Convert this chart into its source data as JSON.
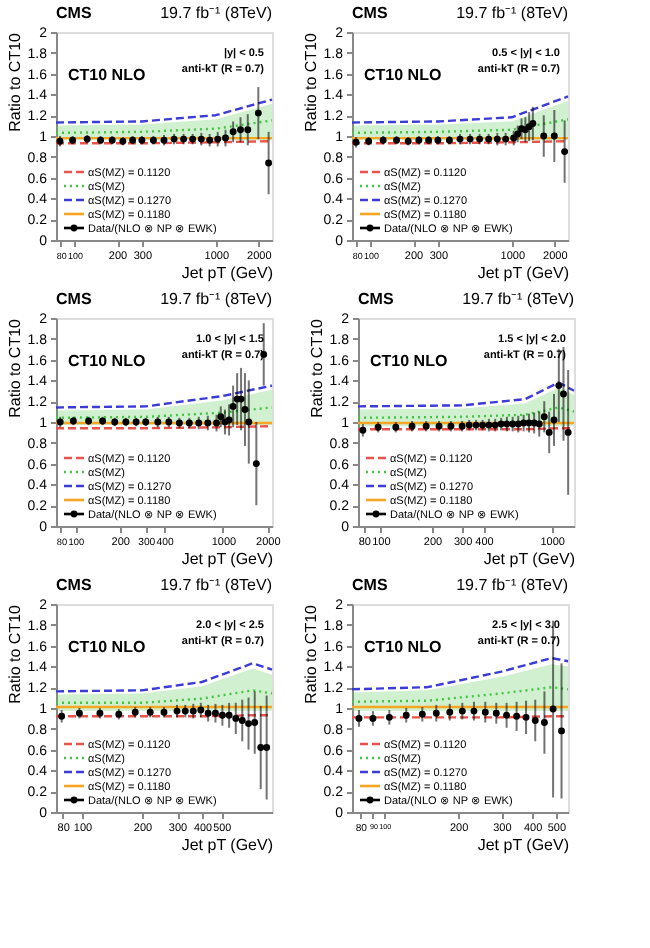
{
  "chart_data": [
    {
      "type": "line",
      "title": "CMS",
      "subtitle": "19.7 fb⁻¹ (8TeV)",
      "xlabel": "Jet pT (GeV)",
      "ylabel": "Ratio to CT10",
      "annotations": [
        "CT10 NLO",
        "|y| < 0.5",
        "anti-kT (R = 0.7)"
      ],
      "log": "x",
      "legend": "bottom left",
      "xlim": [
        74,
        2500
      ],
      "xticks": [
        80,
        100,
        200,
        300,
        1000,
        2000
      ],
      "ylim": [
        0,
        2
      ],
      "yticks": [
        0,
        0.2,
        0.4,
        0.6,
        0.8,
        1,
        1.2,
        1.4,
        1.6,
        1.8,
        2
      ],
      "series": [
        {
          "name": "αS(MZ) = 0.1120",
          "line_style": "dashed",
          "color": "#e8534b",
          "x": [
            74,
            300,
            1000,
            2500
          ],
          "values": [
            0.93,
            0.93,
            0.94,
            0.95
          ]
        },
        {
          "name": "αS(MZ)",
          "line_style": "dotted",
          "color": "#44c444",
          "x": [
            74,
            300,
            1000,
            2500
          ],
          "values": [
            1.03,
            1.04,
            1.07,
            1.15
          ],
          "lower": [
            0.96,
            0.96,
            0.96,
            0.96
          ],
          "upper": [
            1.1,
            1.11,
            1.16,
            1.31
          ]
        },
        {
          "name": "αS(MZ) = 0.1270",
          "line_style": "dashed",
          "color": "#3b3bd6",
          "x": [
            74,
            300,
            1000,
            2500
          ],
          "values": [
            1.13,
            1.14,
            1.2,
            1.35
          ]
        },
        {
          "name": "αS(MZ) = 0.1180",
          "line_style": "solid",
          "color": "#f5a623",
          "x": [
            74,
            300,
            1000,
            2500
          ],
          "values": [
            0.98,
            0.98,
            0.98,
            0.98
          ]
        },
        {
          "name": "Data/(NLO ⊗ NP ⊗ EWK)",
          "type": "scatter",
          "marker": "circle",
          "color": "#000000",
          "x": [
            79,
            97,
            123,
            153,
            185,
            220,
            258,
            300,
            362,
            430,
            507,
            592,
            686,
            790,
            905,
            1032,
            1172,
            1327,
            1497,
            1684,
            2000,
            2366
          ],
          "values": [
            0.95,
            0.96,
            0.97,
            0.96,
            0.96,
            0.95,
            0.96,
            0.96,
            0.96,
            0.96,
            0.97,
            0.97,
            0.97,
            0.97,
            0.96,
            0.97,
            0.98,
            1.04,
            1.06,
            1.06,
            1.22,
            0.74
          ],
          "errors": [
            0.05,
            0.04,
            0.04,
            0.04,
            0.04,
            0.04,
            0.04,
            0.04,
            0.04,
            0.05,
            0.05,
            0.05,
            0.05,
            0.06,
            0.06,
            0.07,
            0.08,
            0.1,
            0.12,
            0.15,
            0.25,
            0.3
          ]
        }
      ]
    },
    {
      "type": "line",
      "title": "CMS",
      "subtitle": "19.7 fb⁻¹ (8TeV)",
      "xlabel": "Jet pT (GeV)",
      "ylabel": "Ratio to CT10",
      "annotations": [
        "CT10 NLO",
        "0.5 < |y| < 1.0",
        "anti-kT (R = 0.7)"
      ],
      "log": "x",
      "legend": "bottom left",
      "xlim": [
        74,
        2500
      ],
      "xticks": [
        80,
        100,
        200,
        300,
        1000,
        2000
      ],
      "ylim": [
        0,
        2
      ],
      "yticks": [
        0,
        0.2,
        0.4,
        0.6,
        0.8,
        1,
        1.2,
        1.4,
        1.6,
        1.8,
        2
      ],
      "series": [
        {
          "name": "αS(MZ) = 0.1120",
          "type": "line",
          "line_style": "dashed",
          "color": "#e8534b",
          "x": [
            74,
            300,
            1000,
            2500
          ],
          "values": [
            0.93,
            0.93,
            0.94,
            0.95
          ]
        },
        {
          "name": "αS(MZ)",
          "type": "line",
          "line_style": "dotted",
          "color": "#44c444",
          "x": [
            74,
            300,
            1000,
            2500
          ],
          "values": [
            1.03,
            1.04,
            1.06,
            1.16
          ],
          "lower": [
            0.96,
            0.96,
            0.96,
            0.96
          ],
          "upper": [
            1.1,
            1.11,
            1.14,
            1.34
          ]
        },
        {
          "name": "αS(MZ) = 0.1270",
          "type": "line",
          "line_style": "dashed",
          "color": "#3b3bd6",
          "x": [
            74,
            300,
            1000,
            2500
          ],
          "values": [
            1.13,
            1.14,
            1.18,
            1.38
          ]
        },
        {
          "name": "αS(MZ) = 0.1180",
          "type": "line",
          "line_style": "solid",
          "color": "#f5a623",
          "x": [
            74,
            300,
            1000,
            2500
          ],
          "values": [
            0.98,
            0.98,
            0.98,
            0.98
          ]
        },
        {
          "name": "Data/(NLO ⊗ NP ⊗ EWK)",
          "type": "scatter",
          "marker": "circle",
          "color": "#000000",
          "x": [
            79,
            97,
            123,
            153,
            185,
            220,
            258,
            300,
            362,
            430,
            507,
            592,
            686,
            790,
            905,
            1032,
            1101,
            1172,
            1248,
            1327,
            1410,
            1684,
            2000,
            2366
          ],
          "values": [
            0.94,
            0.95,
            0.96,
            0.96,
            0.95,
            0.96,
            0.96,
            0.96,
            0.96,
            0.97,
            0.97,
            0.97,
            0.97,
            0.97,
            0.97,
            0.98,
            1.02,
            1.07,
            1.06,
            1.09,
            1.12,
            1.0,
            1.0,
            0.85
          ],
          "errors": [
            0.05,
            0.04,
            0.04,
            0.04,
            0.04,
            0.04,
            0.04,
            0.04,
            0.04,
            0.05,
            0.05,
            0.05,
            0.05,
            0.06,
            0.06,
            0.07,
            0.08,
            0.1,
            0.12,
            0.14,
            0.16,
            0.2,
            0.25,
            0.3
          ]
        }
      ]
    },
    {
      "type": "line",
      "title": "CMS",
      "subtitle": "19.7 fb⁻¹ (8TeV)",
      "xlabel": "Jet pT (GeV)",
      "ylabel": "Ratio to CT10",
      "annotations": [
        "CT10 NLO",
        "1.0 < |y| < 1.5",
        "anti-kT (R = 0.7)"
      ],
      "log": "x",
      "legend": "bottom left",
      "xlim": [
        74,
        2150
      ],
      "xticks": [
        80,
        100,
        200,
        300,
        400,
        1000,
        2000
      ],
      "ylim": [
        0,
        2
      ],
      "yticks": [
        0,
        0.2,
        0.4,
        0.6,
        0.8,
        1,
        1.2,
        1.4,
        1.6,
        1.8,
        2
      ],
      "series": [
        {
          "name": "αS(MZ) = 0.1120",
          "type": "line",
          "line_style": "dashed",
          "color": "#e8534b",
          "x": [
            74,
            300,
            1000,
            2150
          ],
          "values": [
            0.94,
            0.94,
            0.95,
            0.96
          ]
        },
        {
          "name": "αS(MZ)",
          "type": "line",
          "line_style": "dotted",
          "color": "#44c444",
          "x": [
            74,
            300,
            1000,
            2150
          ],
          "values": [
            1.04,
            1.05,
            1.09,
            1.14
          ],
          "lower": [
            0.97,
            0.97,
            0.97,
            0.97
          ],
          "upper": [
            1.11,
            1.12,
            1.21,
            1.31
          ]
        },
        {
          "name": "αS(MZ) = 0.1270",
          "type": "line",
          "line_style": "dashed",
          "color": "#3b3bd6",
          "x": [
            74,
            300,
            1000,
            2150
          ],
          "values": [
            1.14,
            1.15,
            1.25,
            1.35
          ]
        },
        {
          "name": "αS(MZ) = 0.1180",
          "type": "line",
          "line_style": "solid",
          "color": "#f5a623",
          "x": [
            74,
            300,
            1000,
            2150
          ],
          "values": [
            0.99,
            0.99,
            0.99,
            0.99
          ]
        },
        {
          "name": "Data/(NLO ⊗ NP ⊗ EWK)",
          "type": "scatter",
          "marker": "circle",
          "color": "#000000",
          "x": [
            79,
            97,
            123,
            153,
            185,
            220,
            258,
            300,
            362,
            430,
            507,
            592,
            686,
            790,
            905,
            967,
            1032,
            1101,
            1172,
            1248,
            1327,
            1410,
            1497,
            1684,
            1890
          ],
          "values": [
            1.0,
            1.01,
            1.01,
            1.01,
            1.0,
            1.0,
            1.0,
            1.0,
            1.0,
            1.0,
            0.99,
            0.99,
            0.99,
            0.99,
            0.99,
            1.05,
            1.0,
            1.02,
            1.15,
            1.22,
            1.22,
            1.12,
            1.0,
            0.6,
            1.65
          ],
          "errors": [
            0.05,
            0.04,
            0.04,
            0.04,
            0.04,
            0.04,
            0.04,
            0.04,
            0.05,
            0.05,
            0.05,
            0.05,
            0.06,
            0.07,
            0.08,
            0.1,
            0.12,
            0.15,
            0.2,
            0.25,
            0.3,
            0.35,
            0.4,
            0.4,
            0.3
          ]
        }
      ]
    },
    {
      "type": "line",
      "title": "CMS",
      "subtitle": "19.7 fb⁻¹ (8TeV)",
      "xlabel": "Jet pT (GeV)",
      "ylabel": "Ratio to CT10",
      "annotations": [
        "CT10 NLO",
        "1.5 < |y| < 2.0",
        "anti-kT (R = 0.7)"
      ],
      "log": "x",
      "legend": "bottom left",
      "xlim": [
        74,
        1350
      ],
      "xticks": [
        80,
        100,
        200,
        300,
        400,
        1000
      ],
      "ylim": [
        0,
        2
      ],
      "yticks": [
        0,
        0.2,
        0.4,
        0.6,
        0.8,
        1,
        1.2,
        1.4,
        1.6,
        1.8,
        2
      ],
      "series": [
        {
          "name": "αS(MZ) = 0.1120",
          "type": "line",
          "line_style": "dashed",
          "color": "#e8534b",
          "x": [
            74,
            300,
            700,
            1100,
            1350
          ],
          "values": [
            0.93,
            0.93,
            0.93,
            0.94,
            0.94
          ]
        },
        {
          "name": "αS(MZ)",
          "type": "line",
          "line_style": "dotted",
          "color": "#44c444",
          "x": [
            74,
            300,
            700,
            1100,
            1350
          ],
          "values": [
            1.04,
            1.05,
            1.07,
            1.14,
            1.1
          ],
          "lower": [
            0.96,
            0.96,
            0.96,
            0.96,
            0.96
          ],
          "upper": [
            1.12,
            1.13,
            1.18,
            1.33,
            1.26
          ]
        },
        {
          "name": "αS(MZ) = 0.1270",
          "type": "line",
          "line_style": "dashed",
          "color": "#3b3bd6",
          "x": [
            74,
            300,
            700,
            1100,
            1350
          ],
          "values": [
            1.15,
            1.16,
            1.22,
            1.38,
            1.3
          ]
        },
        {
          "name": "αS(MZ) = 0.1180",
          "type": "line",
          "line_style": "solid",
          "color": "#f5a623",
          "x": [
            74,
            300,
            700,
            1100,
            1350
          ],
          "values": [
            0.99,
            0.99,
            0.99,
            0.99,
            0.99
          ]
        },
        {
          "name": "Data/(NLO ⊗ NP ⊗ EWK)",
          "type": "scatter",
          "marker": "circle",
          "color": "#000000",
          "x": [
            79,
            97,
            123,
            153,
            185,
            220,
            258,
            300,
            330,
            362,
            395,
            430,
            468,
            507,
            548,
            592,
            638,
            686,
            737,
            790,
            846,
            905,
            967,
            1032,
            1101,
            1172,
            1248
          ],
          "values": [
            0.92,
            0.95,
            0.95,
            0.96,
            0.96,
            0.96,
            0.96,
            0.96,
            0.97,
            0.97,
            0.97,
            0.97,
            0.97,
            0.98,
            0.98,
            0.98,
            0.98,
            0.99,
            0.99,
            0.99,
            0.98,
            1.05,
            0.9,
            1.02,
            1.35,
            1.27,
            0.9
          ],
          "errors": [
            0.06,
            0.05,
            0.05,
            0.05,
            0.05,
            0.05,
            0.05,
            0.05,
            0.05,
            0.05,
            0.05,
            0.06,
            0.06,
            0.06,
            0.07,
            0.07,
            0.08,
            0.08,
            0.09,
            0.1,
            0.12,
            0.15,
            0.2,
            0.25,
            0.35,
            0.45,
            0.6
          ]
        }
      ]
    },
    {
      "type": "line",
      "title": "CMS",
      "subtitle": "19.7 fb⁻¹ (8TeV)",
      "xlabel": "Jet pT (GeV)",
      "ylabel": "Ratio to CT10",
      "annotations": [
        "CT10 NLO",
        "2.0 < |y| < 2.5",
        "anti-kT (R = 0.7)"
      ],
      "log": "x",
      "legend": "bottom left",
      "xlim": [
        74,
        900
      ],
      "xticks": [
        80,
        100,
        200,
        300,
        400,
        500
      ],
      "ylim": [
        0,
        2
      ],
      "yticks": [
        0,
        0.2,
        0.4,
        0.6,
        0.8,
        1,
        1.2,
        1.4,
        1.6,
        1.8,
        2
      ],
      "series": [
        {
          "name": "αS(MZ) = 0.1120",
          "type": "line",
          "line_style": "dashed",
          "color": "#e8534b",
          "x": [
            74,
            200,
            400,
            720,
            900
          ],
          "values": [
            0.92,
            0.92,
            0.92,
            0.93,
            0.93
          ]
        },
        {
          "name": "αS(MZ)",
          "type": "line",
          "line_style": "dotted",
          "color": "#44c444",
          "x": [
            74,
            200,
            400,
            720,
            900
          ],
          "values": [
            1.05,
            1.05,
            1.09,
            1.17,
            1.14
          ],
          "lower": [
            0.97,
            0.97,
            0.97,
            0.97,
            0.97
          ],
          "upper": [
            1.13,
            1.14,
            1.21,
            1.38,
            1.32
          ]
        },
        {
          "name": "αS(MZ) = 0.1270",
          "type": "line",
          "line_style": "dashed",
          "color": "#3b3bd6",
          "x": [
            74,
            200,
            400,
            720,
            900
          ],
          "values": [
            1.16,
            1.17,
            1.25,
            1.43,
            1.37
          ]
        },
        {
          "name": "αS(MZ) = 0.1180",
          "type": "line",
          "line_style": "solid",
          "color": "#f5a623",
          "x": [
            74,
            200,
            400,
            720,
            900
          ],
          "values": [
            1.01,
            1.01,
            1.01,
            1.01,
            1.01
          ]
        },
        {
          "name": "Data/(NLO ⊗ NP ⊗ EWK)",
          "type": "scatter",
          "marker": "circle",
          "color": "#000000",
          "x": [
            79,
            97,
            123,
            153,
            185,
            220,
            258,
            300,
            330,
            362,
            395,
            430,
            468,
            507,
            548,
            592,
            638,
            686,
            737,
            790,
            846
          ],
          "values": [
            0.92,
            0.95,
            0.95,
            0.94,
            0.96,
            0.96,
            0.96,
            0.97,
            0.97,
            0.97,
            0.98,
            0.95,
            0.95,
            0.93,
            0.93,
            0.9,
            0.88,
            0.85,
            0.86,
            0.62,
            0.62
          ],
          "errors": [
            0.06,
            0.05,
            0.05,
            0.05,
            0.05,
            0.05,
            0.05,
            0.06,
            0.06,
            0.07,
            0.07,
            0.08,
            0.09,
            0.1,
            0.12,
            0.15,
            0.2,
            0.25,
            0.3,
            0.4,
            0.5
          ]
        }
      ]
    },
    {
      "type": "line",
      "title": "CMS",
      "subtitle": "19.7 fb⁻¹ (8TeV)",
      "xlabel": "Jet pT (GeV)",
      "ylabel": "Ratio to CT10",
      "annotations": [
        "CT10 NLO",
        "2.5 < |y| < 3.0",
        "anti-kT (R = 0.7)"
      ],
      "log": "x",
      "legend": "bottom left",
      "xlim": [
        74,
        560
      ],
      "xticks": [
        80,
        90,
        100,
        200,
        300,
        400,
        500
      ],
      "ylim": [
        0,
        2
      ],
      "yticks": [
        0,
        0.2,
        0.4,
        0.6,
        0.8,
        1,
        1.2,
        1.4,
        1.6,
        1.8,
        2
      ],
      "series": [
        {
          "name": "αS(MZ) = 0.1120",
          "type": "line",
          "line_style": "dashed",
          "color": "#e8534b",
          "x": [
            74,
            150,
            300,
            480,
            560
          ],
          "values": [
            0.91,
            0.91,
            0.91,
            0.92,
            0.92
          ]
        },
        {
          "name": "αS(MZ)",
          "type": "line",
          "line_style": "dotted",
          "color": "#44c444",
          "x": [
            74,
            150,
            300,
            480,
            560
          ],
          "values": [
            1.06,
            1.07,
            1.14,
            1.2,
            1.18
          ],
          "lower": [
            0.97,
            0.97,
            0.97,
            0.97,
            0.97
          ],
          "upper": [
            1.15,
            1.17,
            1.3,
            1.42,
            1.4
          ]
        },
        {
          "name": "αS(MZ) = 0.1270",
          "type": "line",
          "line_style": "dashed",
          "color": "#3b3bd6",
          "x": [
            74,
            150,
            300,
            480,
            560
          ],
          "values": [
            1.18,
            1.2,
            1.35,
            1.48,
            1.45
          ]
        },
        {
          "name": "αS(MZ) = 0.1180",
          "type": "line",
          "line_style": "solid",
          "color": "#f5a623",
          "x": [
            74,
            150,
            300,
            480,
            560
          ],
          "values": [
            1.01,
            1.01,
            1.01,
            1.01,
            1.01
          ]
        },
        {
          "name": "Data/(NLO ⊗ NP ⊗ EWK)",
          "type": "scatter",
          "marker": "circle",
          "color": "#000000",
          "x": [
            79,
            90,
            105,
            123,
            143,
            163,
            185,
            208,
            232,
            258,
            286,
            315,
            346,
            378,
            412,
            449,
            487,
            527
          ],
          "values": [
            0.9,
            0.9,
            0.91,
            0.93,
            0.94,
            0.95,
            0.96,
            0.97,
            0.97,
            0.96,
            0.95,
            0.93,
            0.92,
            0.91,
            0.88,
            0.86,
            0.99,
            0.78
          ],
          "errors": [
            0.08,
            0.07,
            0.07,
            0.07,
            0.07,
            0.08,
            0.08,
            0.08,
            0.09,
            0.1,
            0.1,
            0.12,
            0.14,
            0.16,
            0.2,
            0.3,
            0.85,
            0.65
          ]
        }
      ]
    }
  ]
}
